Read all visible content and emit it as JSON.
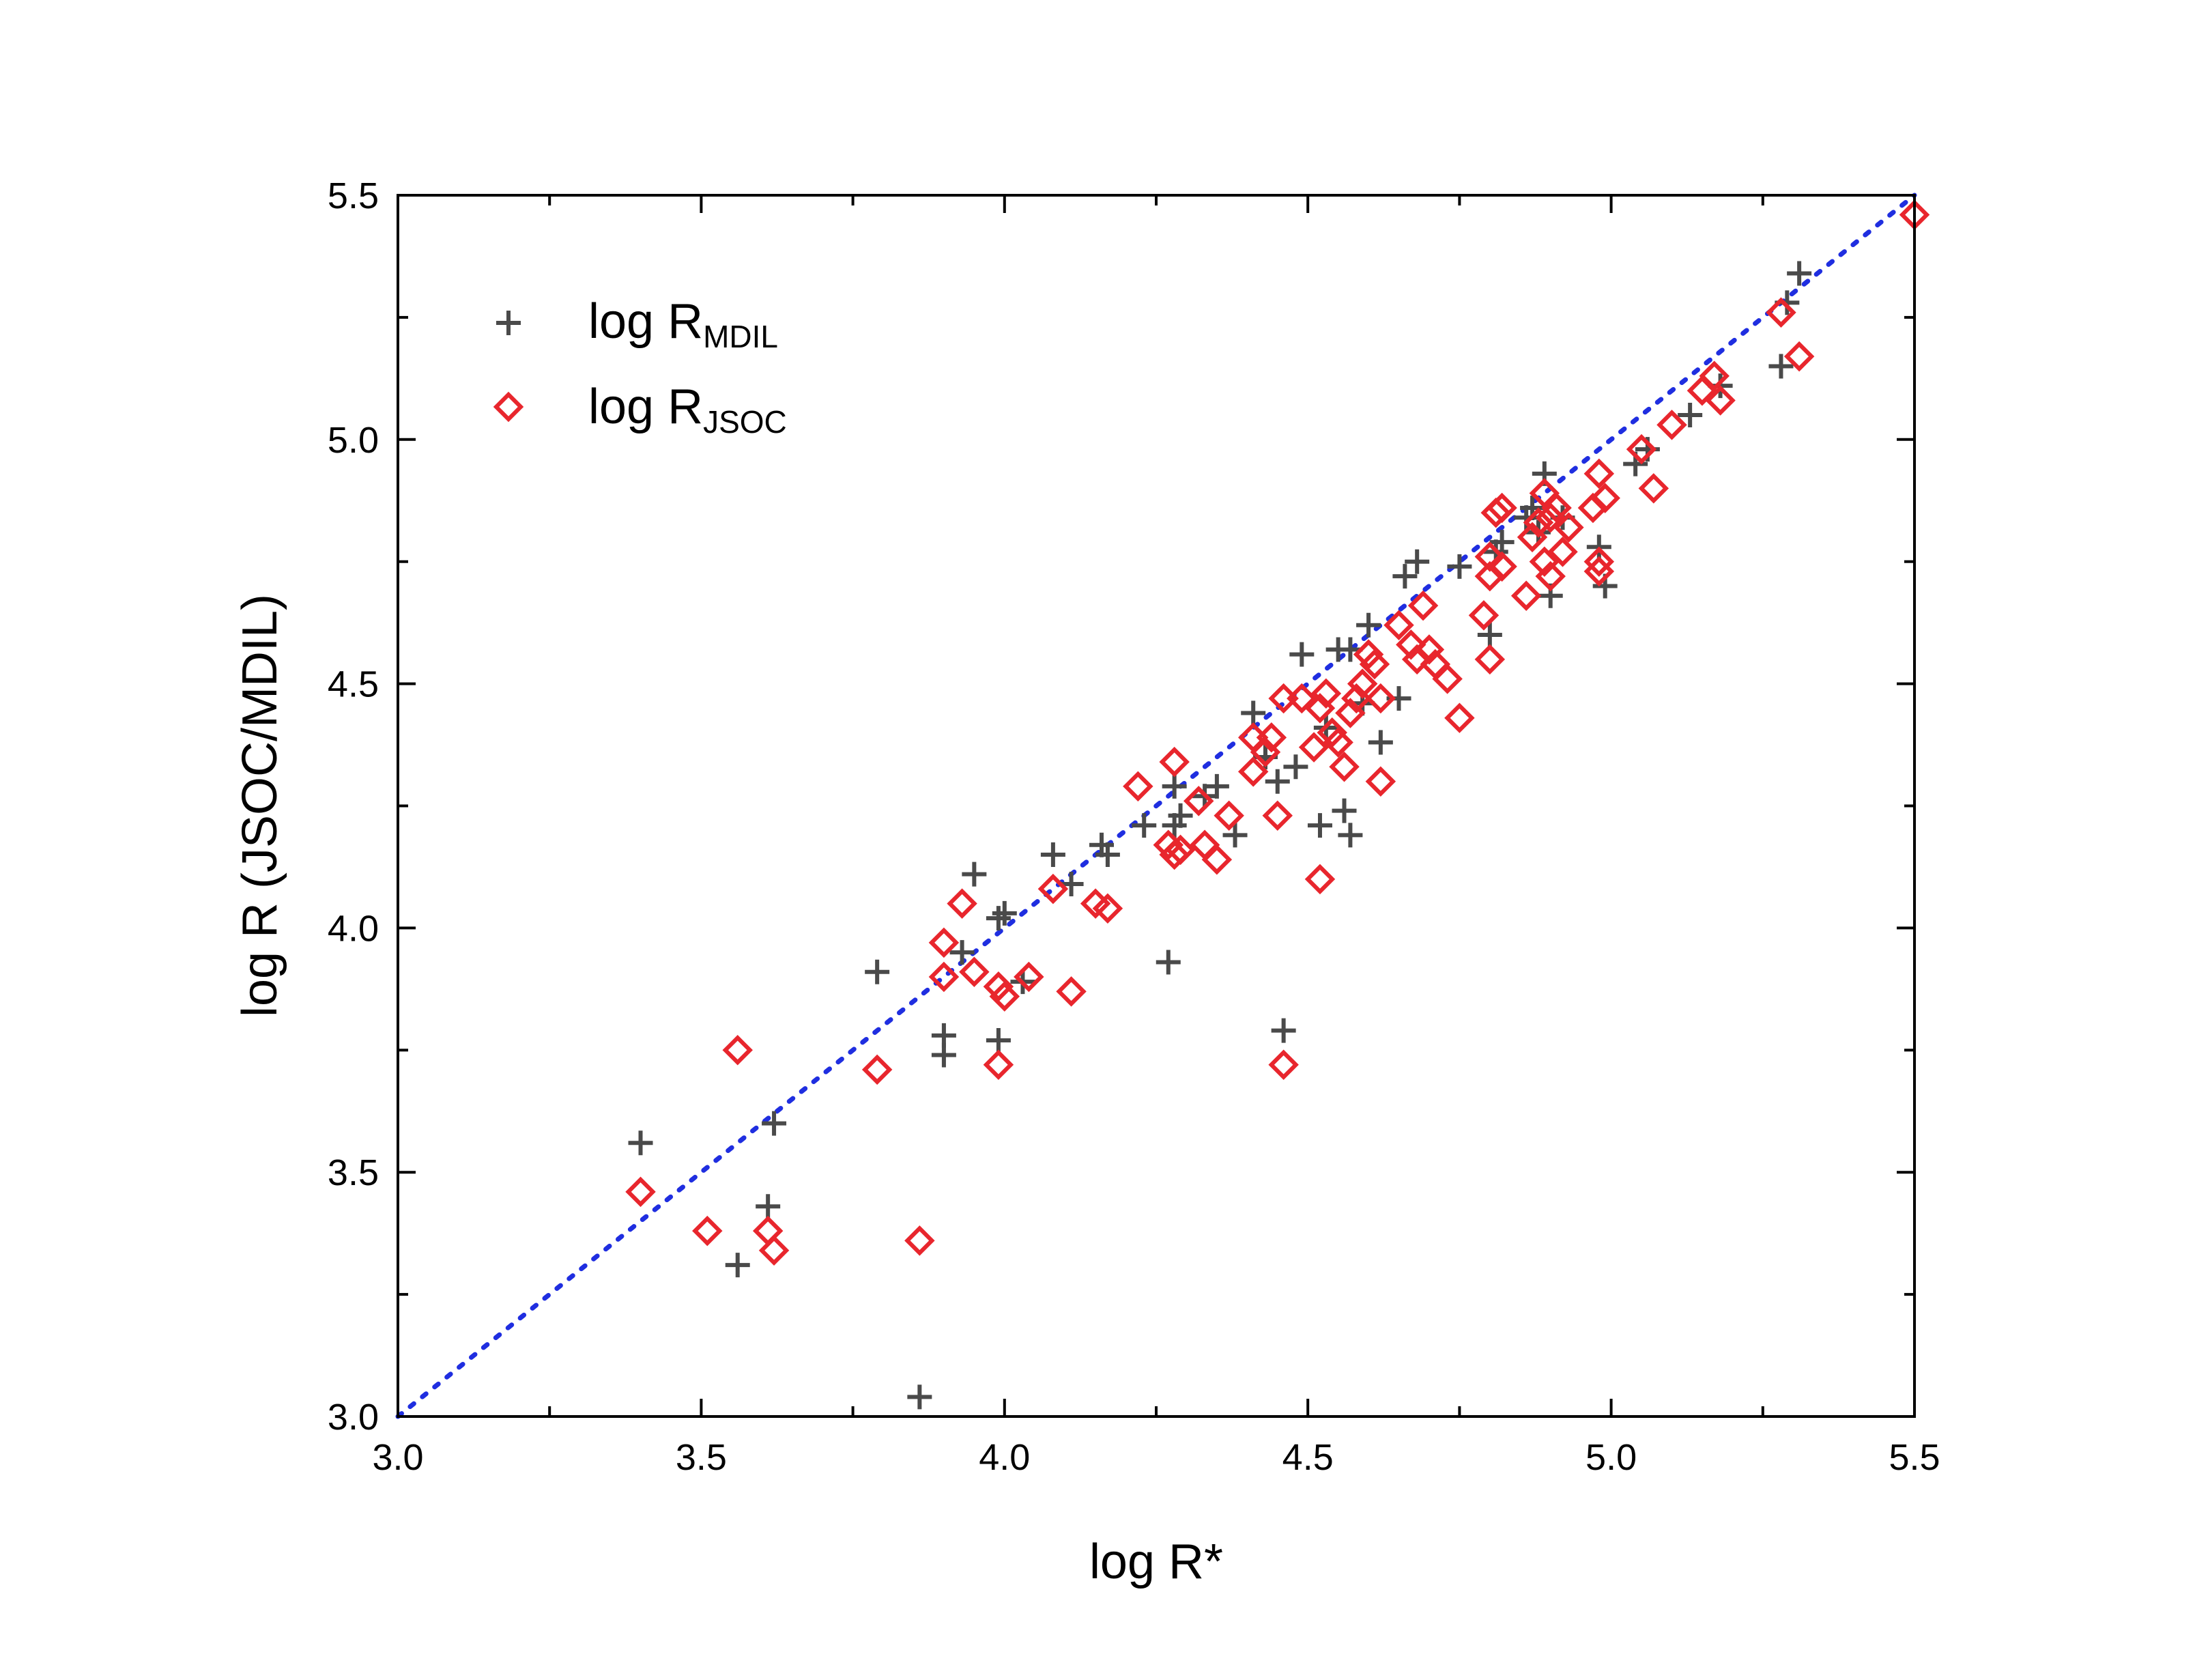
{
  "chart_data": {
    "type": "scatter",
    "title": "",
    "xlabel": "log R*",
    "ylabel": "log R (JSOC/MDIL)",
    "xlim": [
      3.0,
      5.5
    ],
    "ylim": [
      3.0,
      5.5
    ],
    "xticks": [
      "3.0",
      "3.5",
      "4.0",
      "4.5",
      "5.0",
      "5.5"
    ],
    "yticks": [
      "3.0",
      "3.5",
      "4.0",
      "4.5",
      "5.0",
      "5.5"
    ],
    "legend_position": "top-left",
    "reference_line": {
      "name": "y = x",
      "x": [
        3.0,
        5.5
      ],
      "y": [
        3.0,
        5.5
      ],
      "color": "#1f2ee0",
      "style": "dotted"
    },
    "series": [
      {
        "name": "log R",
        "subscript": "MDIL",
        "marker": "plus",
        "color": "#4a4a4a",
        "points": [
          [
            3.4,
            3.56
          ],
          [
            3.56,
            3.31
          ],
          [
            3.61,
            3.43
          ],
          [
            3.62,
            3.6
          ],
          [
            3.79,
            3.91
          ],
          [
            3.86,
            3.04
          ],
          [
            3.9,
            3.78
          ],
          [
            3.9,
            3.74
          ],
          [
            3.93,
            3.95
          ],
          [
            3.95,
            4.11
          ],
          [
            3.99,
            4.02
          ],
          [
            4.0,
            4.03
          ],
          [
            3.99,
            3.77
          ],
          [
            4.03,
            3.89
          ],
          [
            4.08,
            4.15
          ],
          [
            4.11,
            4.09
          ],
          [
            4.16,
            4.17
          ],
          [
            4.17,
            4.15
          ],
          [
            4.23,
            4.21
          ],
          [
            4.27,
            3.93
          ],
          [
            4.28,
            4.29
          ],
          [
            4.28,
            4.21
          ],
          [
            4.29,
            4.23
          ],
          [
            4.33,
            4.27
          ],
          [
            4.35,
            4.29
          ],
          [
            4.38,
            4.19
          ],
          [
            4.41,
            4.44
          ],
          [
            4.43,
            4.35
          ],
          [
            4.45,
            4.3
          ],
          [
            4.46,
            3.79
          ],
          [
            4.48,
            4.33
          ],
          [
            4.49,
            4.56
          ],
          [
            4.52,
            4.21
          ],
          [
            4.53,
            4.41
          ],
          [
            4.55,
            4.57
          ],
          [
            4.56,
            4.24
          ],
          [
            4.57,
            4.19
          ],
          [
            4.57,
            4.57
          ],
          [
            4.59,
            4.46
          ],
          [
            4.6,
            4.62
          ],
          [
            4.62,
            4.38
          ],
          [
            4.65,
            4.47
          ],
          [
            4.66,
            4.72
          ],
          [
            4.68,
            4.75
          ],
          [
            4.75,
            4.74
          ],
          [
            4.8,
            4.6
          ],
          [
            4.81,
            4.77
          ],
          [
            4.82,
            4.79
          ],
          [
            4.86,
            4.84
          ],
          [
            4.87,
            4.86
          ],
          [
            4.88,
            4.81
          ],
          [
            4.89,
            4.93
          ],
          [
            4.9,
            4.68
          ],
          [
            4.92,
            4.84
          ],
          [
            4.98,
            4.78
          ],
          [
            4.99,
            4.7
          ],
          [
            5.04,
            4.95
          ],
          [
            5.06,
            4.98
          ],
          [
            5.13,
            5.05
          ],
          [
            5.18,
            5.11
          ],
          [
            5.28,
            5.15
          ],
          [
            5.29,
            5.28
          ],
          [
            5.31,
            5.34
          ]
        ]
      },
      {
        "name": "log R",
        "subscript": "JSOC",
        "marker": "diamond",
        "color": "#e8262d",
        "points": [
          [
            3.4,
            3.46
          ],
          [
            3.51,
            3.38
          ],
          [
            3.56,
            3.75
          ],
          [
            3.61,
            3.38
          ],
          [
            3.62,
            3.34
          ],
          [
            3.79,
            3.71
          ],
          [
            3.86,
            3.36
          ],
          [
            3.9,
            3.97
          ],
          [
            3.9,
            3.9
          ],
          [
            3.93,
            4.05
          ],
          [
            3.95,
            3.91
          ],
          [
            3.99,
            3.88
          ],
          [
            4.0,
            3.86
          ],
          [
            3.99,
            3.72
          ],
          [
            4.04,
            3.9
          ],
          [
            4.08,
            4.08
          ],
          [
            4.11,
            3.87
          ],
          [
            4.15,
            4.05
          ],
          [
            4.17,
            4.04
          ],
          [
            4.22,
            4.29
          ],
          [
            4.27,
            4.17
          ],
          [
            4.28,
            4.34
          ],
          [
            4.28,
            4.15
          ],
          [
            4.29,
            4.16
          ],
          [
            4.32,
            4.26
          ],
          [
            4.33,
            4.17
          ],
          [
            4.35,
            4.14
          ],
          [
            4.37,
            4.23
          ],
          [
            4.41,
            4.39
          ],
          [
            4.41,
            4.32
          ],
          [
            4.43,
            4.36
          ],
          [
            4.44,
            4.39
          ],
          [
            4.45,
            4.23
          ],
          [
            4.46,
            3.72
          ],
          [
            4.46,
            4.47
          ],
          [
            4.49,
            4.47
          ],
          [
            4.51,
            4.37
          ],
          [
            4.52,
            4.1
          ],
          [
            4.52,
            4.45
          ],
          [
            4.53,
            4.48
          ],
          [
            4.54,
            4.4
          ],
          [
            4.55,
            4.38
          ],
          [
            4.56,
            4.33
          ],
          [
            4.57,
            4.44
          ],
          [
            4.58,
            4.47
          ],
          [
            4.59,
            4.5
          ],
          [
            4.6,
            4.56
          ],
          [
            4.61,
            4.54
          ],
          [
            4.62,
            4.3
          ],
          [
            4.62,
            4.47
          ],
          [
            4.65,
            4.62
          ],
          [
            4.67,
            4.58
          ],
          [
            4.68,
            4.55
          ],
          [
            4.69,
            4.66
          ],
          [
            4.7,
            4.57
          ],
          [
            4.71,
            4.54
          ],
          [
            4.73,
            4.51
          ],
          [
            4.75,
            4.43
          ],
          [
            4.79,
            4.64
          ],
          [
            4.8,
            4.72
          ],
          [
            4.8,
            4.55
          ],
          [
            4.8,
            4.76
          ],
          [
            4.81,
            4.85
          ],
          [
            4.82,
            4.74
          ],
          [
            4.82,
            4.86
          ],
          [
            4.86,
            4.68
          ],
          [
            4.87,
            4.8
          ],
          [
            4.88,
            4.83
          ],
          [
            4.89,
            4.89
          ],
          [
            4.89,
            4.75
          ],
          [
            4.9,
            4.72
          ],
          [
            4.9,
            4.84
          ],
          [
            4.91,
            4.86
          ],
          [
            4.92,
            4.77
          ],
          [
            4.93,
            4.82
          ],
          [
            4.97,
            4.86
          ],
          [
            4.98,
            4.93
          ],
          [
            4.98,
            4.75
          ],
          [
            4.98,
            4.73
          ],
          [
            4.99,
            4.88
          ],
          [
            5.05,
            4.98
          ],
          [
            5.07,
            4.9
          ],
          [
            5.1,
            5.03
          ],
          [
            5.15,
            5.1
          ],
          [
            5.17,
            5.13
          ],
          [
            5.18,
            5.08
          ],
          [
            5.28,
            5.26
          ],
          [
            5.31,
            5.17
          ],
          [
            5.5,
            5.46
          ]
        ]
      }
    ]
  }
}
